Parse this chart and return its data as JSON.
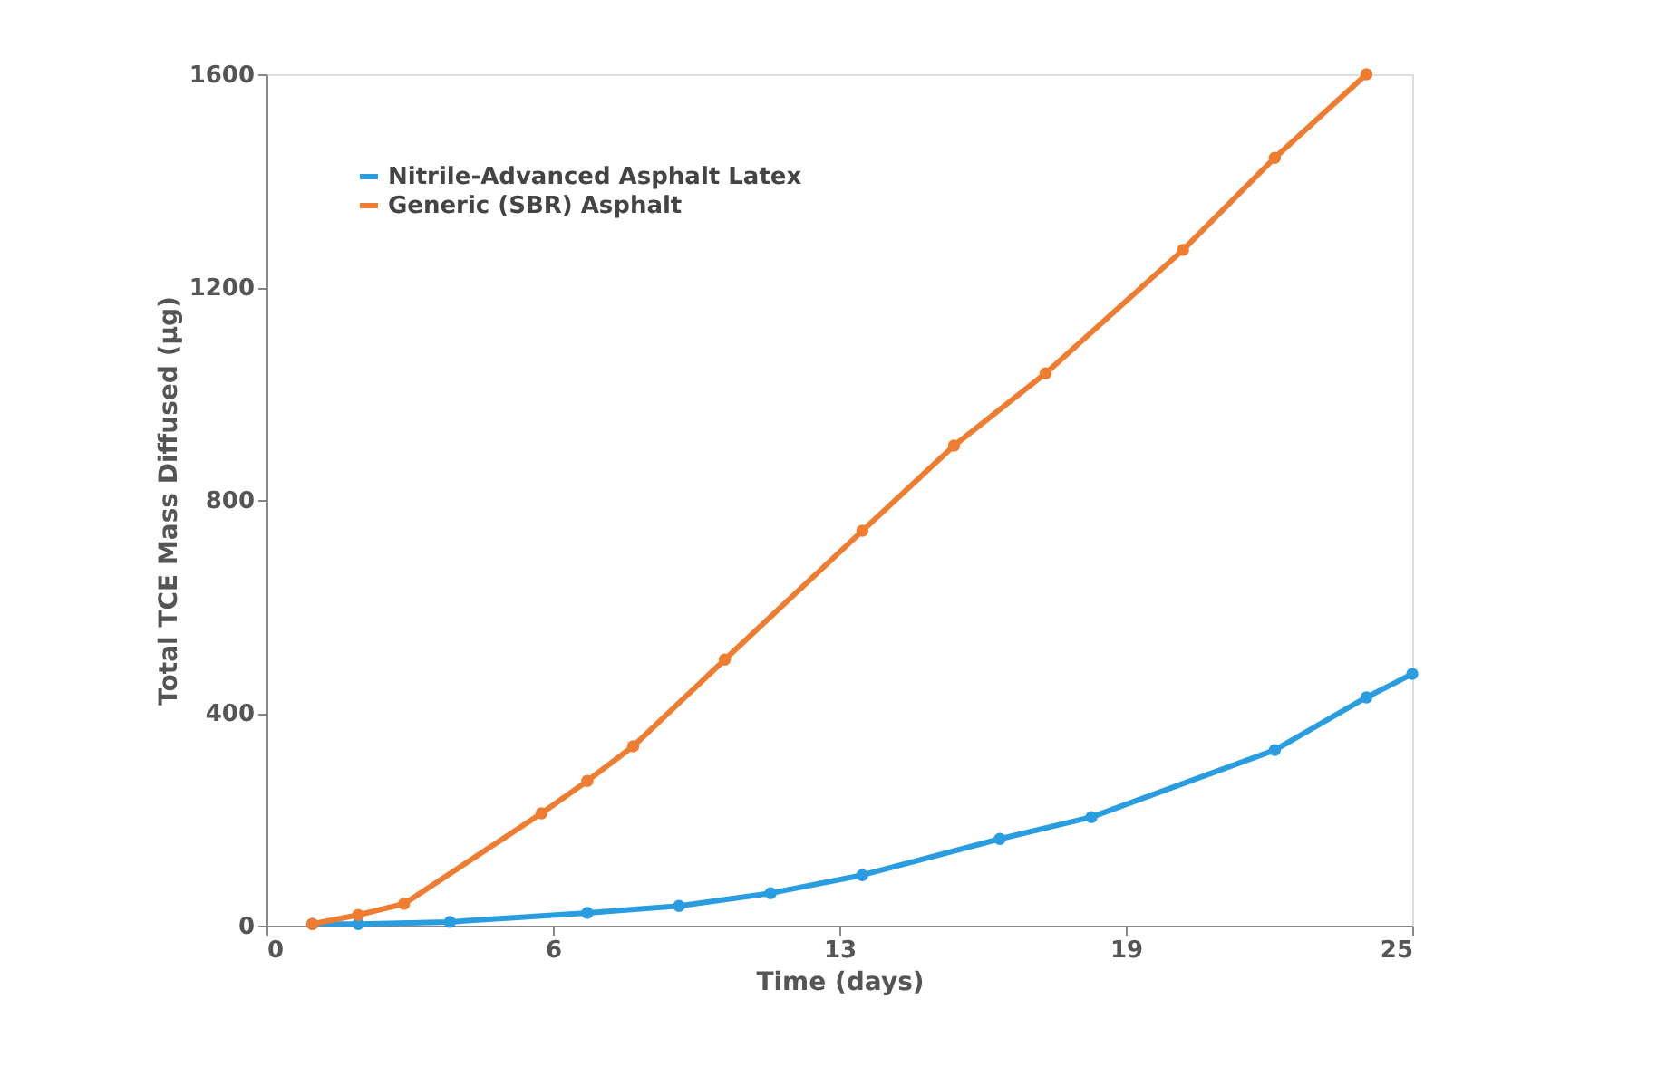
{
  "chart_data": {
    "type": "line",
    "xlabel": "Time (days)",
    "ylabel": "Total TCE Mass Diffused (µg)",
    "xlim": [
      0,
      25
    ],
    "xticks": [
      0,
      {
        "value": 6.25,
        "label": "6"
      },
      {
        "value": 12.5,
        "label": "13"
      },
      {
        "value": 18.75,
        "label": "19"
      },
      25
    ],
    "ylim": [
      0,
      1600
    ],
    "yticks": [
      0,
      400,
      800,
      1200,
      1600
    ],
    "grid": false,
    "legend": "top left",
    "marker": "circle",
    "line_style": "solid",
    "series": [
      {
        "name": "Nitrile-Advanced Asphalt Latex",
        "color": "#2a9de0",
        "x": [
          1,
          2,
          4,
          7,
          9,
          11,
          13,
          16,
          18,
          22,
          24,
          25
        ],
        "values": [
          3,
          3,
          7,
          24,
          37,
          61,
          95,
          163,
          204,
          330,
          429,
          473
        ]
      },
      {
        "name": "Generic (SBR) Asphalt",
        "color": "#ef7d31",
        "x": [
          1,
          2,
          3,
          6,
          7,
          8,
          10,
          13,
          15,
          17,
          20,
          22,
          24
        ],
        "values": [
          3,
          20,
          41,
          211,
          272,
          337,
          500,
          742,
          902,
          1038,
          1270,
          1443,
          1600
        ]
      }
    ]
  }
}
